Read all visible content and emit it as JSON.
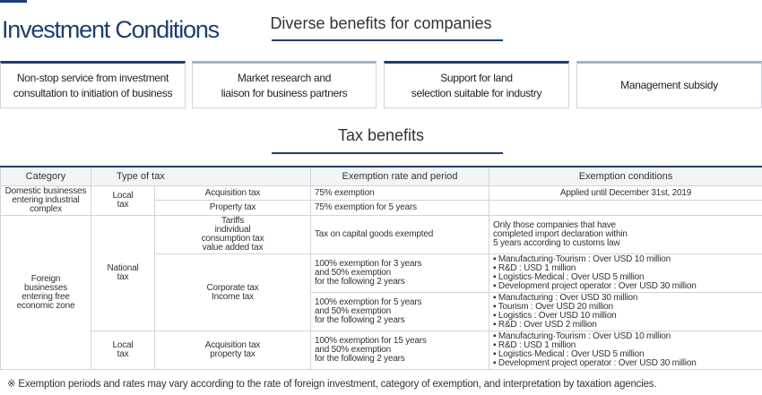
{
  "page_title": "Investment Conditions",
  "section1_title": "Diverse benefits for companies",
  "benefits": [
    "Non-stop service from investment\nconsultation to initiation of business",
    "Market research and\nliaison for business partners",
    "Support for land\nselection suitable for industry",
    "Management subsidy"
  ],
  "section2_title": "Tax benefits",
  "table": {
    "headers": [
      "Category",
      "Type of tax",
      "Exemption rate and period",
      "Exemption conditions"
    ],
    "domestic_category": "Domestic businesses\nentering industrial\ncomplex",
    "local_tax": "Local\ntax",
    "national_tax": "National\ntax",
    "acquisition_tax": "Acquisition tax",
    "property_tax": "Property tax",
    "rate_75": "75% exemption",
    "rate_75_5y": "75% exemption for 5 years",
    "cond_2019": "Applied until December 31st, 2019",
    "foreign_category": "Foreign\nbusinesses\nentering free\neconomic zone",
    "tariffs": "Tariffs\nindividual\nconsumption tax\nvalue added tax",
    "capital_goods": "Tax on capital goods exempted",
    "customs_cond": "Only those companies that have\ncompleted import declaration within\n5 years according to customs law",
    "corporate_tax": "Corporate tax\nIncome tax",
    "rate_3y": "100% exemption for 3 years\nand 50% exemption\nfor the following 2 years",
    "cond_3y": "▪ Manufacturing·Tourism : Over USD 10 million\n▪ R&D : USD 1 million\n▪ Logistics·Medical : Over USD 5 million\n▪ Development project operator : Over USD 30 million",
    "rate_5y": "100% exemption for 5 years\nand 50% exemption\nfor the following 2 years",
    "cond_5y": "▪ Manufacturing : Over USD 30 million\n▪ Tourism : Over USD 20 million\n▪ Logistics : Over USD 10 million\n▪ R&D : Over USD 2 million",
    "acq_prop": "Acquisition tax\nproperty tax",
    "rate_15y": "100% exemption for 15 years\nand 50% exemption\nfor the following 2 years",
    "cond_15y": "▪ Manufacturing·Tourism : Over USD 10 million\n▪ R&D : USD 1 million\n▪ Logistics·Medical : Over USD 5 million\n▪ Development project operator : Over USD 30 million"
  },
  "footnote": "※ Exemption periods and rates may vary according to the rate of foreign investment, category of exemption, and interpretation by taxation agencies."
}
